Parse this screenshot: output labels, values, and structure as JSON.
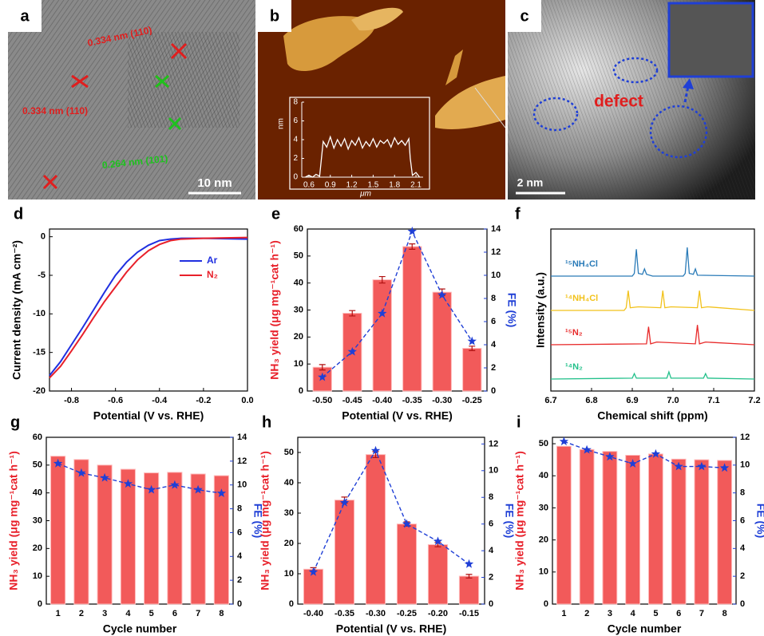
{
  "images": [
    {
      "label": "a",
      "annotations": [
        "0.334 nm (110)",
        "0.334 nm (110)",
        "0.264 nm (101)"
      ],
      "scale_bar": "10 nm"
    },
    {
      "label": "b",
      "profile": {
        "xlabel": "μm",
        "ylabel": "nm",
        "x": [
          0.55,
          0.6,
          0.65,
          0.7,
          0.75,
          0.8,
          0.85,
          0.9,
          0.95,
          1.0,
          1.05,
          1.1,
          1.15,
          1.2,
          1.25,
          1.3,
          1.35,
          1.4,
          1.45,
          1.5,
          1.55,
          1.6,
          1.65,
          1.7,
          1.75,
          1.8,
          1.85,
          1.9,
          1.95,
          2.0,
          2.02,
          2.05,
          2.1,
          2.15
        ],
        "values": [
          0,
          0.2,
          0,
          0.3,
          0.1,
          3.8,
          3.2,
          4.3,
          3.1,
          4.0,
          3.3,
          4.1,
          3.0,
          3.9,
          3.4,
          4.2,
          3.1,
          3.8,
          3.3,
          4.1,
          3.2,
          3.9,
          3.6,
          4.0,
          3.2,
          4.2,
          3.5,
          3.9,
          3.4,
          4.1,
          2.0,
          0.2,
          0.5,
          0
        ],
        "xlim": [
          0.5,
          2.2
        ],
        "ylim": [
          0,
          8
        ],
        "xticks": [
          0.6,
          0.9,
          1.2,
          1.5,
          1.8,
          2.1
        ],
        "yticks": [
          0,
          2,
          4,
          6,
          8
        ],
        "color": "#ffffff"
      }
    },
    {
      "label": "c",
      "annotations": [
        "defect"
      ],
      "scale_bar": "2 nm"
    }
  ],
  "chart_data": [
    {
      "panel": "d",
      "type": "line",
      "xlabel": "Potential (V vs. RHE)",
      "ylabel": "Current density (mA cm⁻²)",
      "x": [
        -0.9,
        -0.85,
        -0.8,
        -0.75,
        -0.7,
        -0.65,
        -0.6,
        -0.55,
        -0.5,
        -0.45,
        -0.4,
        -0.35,
        -0.3,
        -0.2,
        -0.1,
        0
      ],
      "series": [
        {
          "name": "Ar",
          "color": "#1f2fe0",
          "values": [
            -18,
            -16.2,
            -14,
            -11.8,
            -9.5,
            -7.2,
            -5,
            -3.3,
            -2,
            -1.1,
            -0.5,
            -0.3,
            -0.2,
            -0.2,
            -0.25,
            -0.3
          ]
        },
        {
          "name": "N₂",
          "color": "#e8202a",
          "values": [
            -18.3,
            -16.8,
            -14.8,
            -12.7,
            -10.5,
            -8.4,
            -6.5,
            -4.6,
            -3,
            -1.8,
            -1,
            -0.5,
            -0.3,
            -0.2,
            -0.15,
            -0.1
          ]
        }
      ],
      "xlim": [
        -0.9,
        0
      ],
      "xticks": [
        -0.8,
        -0.6,
        -0.4,
        -0.2,
        {
          "value": 0,
          "label": "0.0"
        }
      ],
      "ylim": [
        -20,
        1
      ],
      "yticks": [
        0,
        -5,
        -10,
        -15,
        -20
      ],
      "legend": "right"
    },
    {
      "panel": "e",
      "type": "bar",
      "xlabel": "Potential (V vs. RHE)",
      "ylabel": "NH₃ yield (μg mg⁻¹cat h⁻¹)",
      "y2label": "FE (%)",
      "categories": [
        "-0.50",
        "-0.45",
        "-0.40",
        "-0.35",
        "-0.30",
        "-0.25"
      ],
      "series": [
        {
          "type": "bar",
          "color": "#f25a5a",
          "values": [
            8.8,
            28.8,
            41.2,
            53.5,
            36.6,
            15.8
          ],
          "errors": [
            1,
            1,
            1.2,
            1,
            1.2,
            0.8
          ]
        },
        {
          "type": "line",
          "axis": "y2",
          "color": "#1f3fd6",
          "values": [
            1.2,
            3.4,
            6.7,
            13.8,
            8.3,
            4.3
          ]
        }
      ],
      "ylim": [
        0,
        60
      ],
      "yticks": [
        0,
        10,
        20,
        30,
        40,
        50,
        60
      ],
      "y2lim": [
        0,
        14
      ],
      "y2ticks": [
        0,
        2,
        4,
        6,
        8,
        10,
        12,
        14
      ]
    },
    {
      "panel": "f",
      "type": "line",
      "offset": true,
      "xlabel": "Chemical shift (ppm)",
      "ylabel": "Intensity (a.u.)",
      "series": [
        {
          "name": "¹⁵NH₄Cl",
          "color": "#2a7bb8",
          "x": [
            6.7,
            6.9,
            6.905,
            6.91,
            6.915,
            6.925,
            6.93,
            6.935,
            6.95,
            7.025,
            7.03,
            7.035,
            7.04,
            7.05,
            7.055,
            7.06,
            7.2
          ],
          "values": [
            0,
            0,
            3,
            30,
            3,
            2,
            8,
            2,
            0,
            0,
            3,
            32,
            3,
            2,
            8,
            1,
            0
          ]
        },
        {
          "name": "¹⁴NH₄Cl",
          "color": "#f2c21b",
          "x": [
            6.7,
            6.88,
            6.885,
            6.89,
            6.895,
            6.915,
            6.97,
            6.975,
            6.98,
            6.995,
            7.06,
            7.065,
            7.07,
            7.085,
            7.2
          ],
          "values": [
            0,
            0,
            3,
            22,
            3,
            4,
            3,
            22,
            3,
            4,
            3,
            22,
            3,
            4,
            0
          ]
        },
        {
          "name": "¹⁵N₂",
          "color": "#e82a2a",
          "x": [
            6.7,
            6.935,
            6.94,
            6.945,
            6.96,
            7.055,
            7.06,
            7.065,
            7.08,
            7.2
          ],
          "values": [
            0,
            1,
            20,
            1,
            3,
            1,
            22,
            1,
            3,
            0
          ]
        },
        {
          "name": "¹⁴N₂",
          "color": "#22c08a",
          "x": [
            6.7,
            6.9,
            6.905,
            6.91,
            6.985,
            6.99,
            6.995,
            7.075,
            7.08,
            7.085,
            7.2
          ],
          "values": [
            0,
            1,
            6,
            1,
            1,
            8,
            1,
            1,
            6,
            1,
            0
          ]
        }
      ],
      "xlim": [
        6.7,
        7.2
      ],
      "xticks": [
        6.7,
        6.8,
        6.9,
        {
          "value": 7.0,
          "label": "7.0"
        },
        7.1,
        7.2
      ],
      "ylim": [
        0,
        40
      ]
    },
    {
      "panel": "g",
      "type": "bar",
      "xlabel": "Cycle number",
      "ylabel": "NH₃ yield (μg mg⁻¹cat h⁻¹)",
      "y2label": "FE (%)",
      "categories": [
        "1",
        "2",
        "3",
        "4",
        "5",
        "6",
        "7",
        "8"
      ],
      "series": [
        {
          "type": "bar",
          "color": "#f25a5a",
          "values": [
            53.2,
            52,
            50,
            48.5,
            47.2,
            47.4,
            46.8,
            46.2
          ]
        },
        {
          "type": "line",
          "axis": "y2",
          "color": "#1f3fd6",
          "values": [
            11.8,
            11,
            10.6,
            10.1,
            9.6,
            10,
            9.6,
            9.3
          ]
        }
      ],
      "ylim": [
        0,
        60
      ],
      "yticks": [
        0,
        10,
        20,
        30,
        40,
        50,
        60
      ],
      "y2lim": [
        0,
        14
      ],
      "y2ticks": [
        0,
        2,
        4,
        6,
        8,
        10,
        12,
        14
      ]
    },
    {
      "panel": "h",
      "type": "bar",
      "xlabel": "Potential (V vs. RHE)",
      "ylabel": "NH₃ yield (μg mg⁻¹cat h⁻¹)",
      "y2label": "FE (%)",
      "categories": [
        "-0.40",
        "-0.35",
        "-0.30",
        "-0.25",
        "-0.20",
        "-0.15"
      ],
      "series": [
        {
          "type": "bar",
          "color": "#f25a5a",
          "values": [
            11.5,
            34.3,
            49.3,
            26.4,
            19.6,
            9.2
          ],
          "errors": [
            0.5,
            1,
            1,
            0.7,
            0.7,
            0.6
          ]
        },
        {
          "type": "line",
          "axis": "y2",
          "color": "#1f3fd6",
          "values": [
            2.4,
            7.6,
            11.5,
            6,
            4.7,
            3
          ]
        }
      ],
      "ylim": [
        0,
        55
      ],
      "yticks": [
        0,
        10,
        20,
        30,
        40,
        50
      ],
      "y2lim": [
        0,
        12.5
      ],
      "y2ticks": [
        0,
        2,
        4,
        6,
        8,
        10,
        12
      ]
    },
    {
      "panel": "i",
      "type": "bar",
      "xlabel": "Cycle number",
      "ylabel": "NH₃ yield (μg mg⁻¹cat h⁻¹)",
      "y2label": "FE (%)",
      "categories": [
        "1",
        "2",
        "3",
        "4",
        "5",
        "6",
        "7",
        "8"
      ],
      "series": [
        {
          "type": "bar",
          "color": "#f25a5a",
          "values": [
            49.2,
            48.2,
            47.6,
            46.4,
            46.8,
            45.2,
            45,
            44.8
          ]
        },
        {
          "type": "line",
          "axis": "y2",
          "color": "#1f3fd6",
          "values": [
            11.7,
            11.1,
            10.6,
            10.1,
            10.8,
            9.9,
            9.9,
            9.8
          ]
        }
      ],
      "ylim": [
        0,
        52
      ],
      "yticks": [
        0,
        10,
        20,
        30,
        40,
        50
      ],
      "y2lim": [
        0,
        12
      ],
      "y2ticks": [
        0,
        2,
        4,
        6,
        8,
        10,
        12
      ]
    }
  ]
}
